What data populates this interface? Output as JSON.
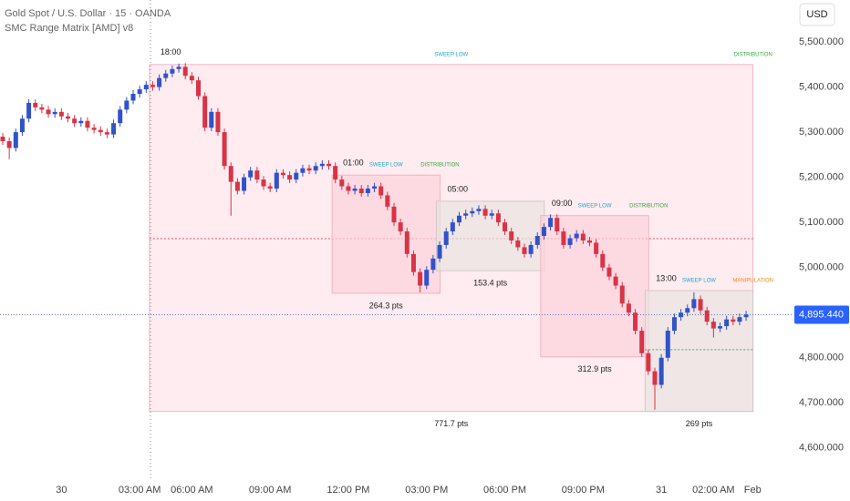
{
  "header": {
    "symbol": "Gold Spot / U.S. Dollar · 15 · OANDA",
    "indicator": "SMC Range Matrix [AMD] v8",
    "currency": "USD"
  },
  "chart_data": {
    "type": "candlestick",
    "categories": [
      null,
      null,
      null,
      null,
      null,
      null,
      null,
      null,
      null,
      "30",
      null,
      null,
      null,
      null,
      null,
      null,
      null,
      null,
      null,
      null,
      null,
      "03:00 AM",
      null,
      null,
      null,
      null,
      null,
      null,
      null,
      "06:00 AM",
      null,
      null,
      null,
      null,
      null,
      null,
      null,
      null,
      null,
      null,
      null,
      "09:00 AM",
      null,
      null,
      null,
      null,
      null,
      null,
      null,
      null,
      null,
      null,
      null,
      "12:00 PM",
      null,
      null,
      null,
      null,
      null,
      null,
      null,
      null,
      null,
      null,
      null,
      "03:00 PM",
      null,
      null,
      null,
      null,
      null,
      null,
      null,
      null,
      null,
      null,
      null,
      "06:00 PM",
      null,
      null,
      null,
      null,
      null,
      null,
      null,
      null,
      null,
      null,
      null,
      "09:00 PM",
      null,
      null,
      null,
      null,
      null,
      null,
      null,
      null,
      null,
      null,
      null,
      "31",
      null,
      null,
      null,
      null,
      null,
      null,
      null,
      "02:00 AM",
      null,
      null,
      null,
      null,
      null,
      "Feb"
    ],
    "open": [
      5290,
      5280,
      5265,
      5300,
      5330,
      5365,
      5355,
      5350,
      5340,
      5345,
      5335,
      5330,
      5320,
      5325,
      5310,
      5305,
      5300,
      5295,
      5320,
      5350,
      5370,
      5385,
      5395,
      5405,
      5400,
      5420,
      5430,
      5440,
      5445,
      5425,
      5415,
      5380,
      5310,
      5345,
      5300,
      5225,
      5190,
      5170,
      5200,
      5215,
      5195,
      5180,
      5175,
      5210,
      5205,
      5195,
      5210,
      5220,
      5215,
      5225,
      5230,
      5225,
      5195,
      5180,
      5170,
      5175,
      5165,
      5175,
      5180,
      5160,
      5135,
      5100,
      5080,
      5030,
      4990,
      4960,
      4995,
      5020,
      5050,
      5080,
      5100,
      5115,
      5120,
      5125,
      5130,
      5115,
      5120,
      5100,
      5080,
      5060,
      5045,
      5030,
      5050,
      5070,
      5090,
      5110,
      5080,
      5050,
      5065,
      5075,
      5060,
      5055,
      5030,
      5000,
      4980,
      4960,
      4920,
      4900,
      4860,
      4810,
      4770,
      4740,
      4800,
      4860,
      4890,
      4900,
      4910,
      4930,
      4905,
      4880,
      4865,
      4870,
      4885,
      4880,
      4890,
      null
    ],
    "high": [
      5298,
      5288,
      5308,
      5338,
      5373,
      5373,
      5363,
      5358,
      5353,
      5353,
      5343,
      5338,
      5333,
      5333,
      5318,
      5313,
      5308,
      5328,
      5358,
      5378,
      5393,
      5403,
      5413,
      5413,
      5428,
      5438,
      5448,
      5452,
      5453,
      5433,
      5423,
      5388,
      5353,
      5353,
      5308,
      5233,
      5198,
      5208,
      5223,
      5223,
      5203,
      5188,
      5218,
      5218,
      5213,
      5218,
      5228,
      5228,
      5233,
      5238,
      5238,
      5233,
      5203,
      5188,
      5183,
      5183,
      5183,
      5188,
      5188,
      5168,
      5143,
      5108,
      5088,
      5038,
      4998,
      5003,
      5028,
      5058,
      5088,
      5108,
      5123,
      5128,
      5133,
      5138,
      5138,
      5128,
      5128,
      5108,
      5088,
      5068,
      5053,
      5058,
      5078,
      5098,
      5118,
      5118,
      5088,
      5073,
      5083,
      5083,
      5068,
      5063,
      5038,
      5008,
      4988,
      4968,
      4928,
      4908,
      4868,
      4818,
      4778,
      4808,
      4868,
      4898,
      4908,
      4918,
      4945,
      4938,
      4913,
      4888,
      4878,
      4893,
      4893,
      4898,
      4904,
      null
    ],
    "low": [
      5272,
      5240,
      5257,
      5292,
      5322,
      5347,
      5342,
      5332,
      5332,
      5327,
      5322,
      5312,
      5312,
      5302,
      5297,
      5292,
      5287,
      5287,
      5312,
      5342,
      5362,
      5377,
      5387,
      5392,
      5392,
      5412,
      5422,
      5432,
      5417,
      5407,
      5372,
      5302,
      5302,
      5292,
      5217,
      5115,
      5162,
      5162,
      5192,
      5187,
      5172,
      5167,
      5167,
      5197,
      5187,
      5187,
      5202,
      5207,
      5207,
      5217,
      5217,
      5187,
      5172,
      5162,
      5162,
      5157,
      5157,
      5167,
      5152,
      5127,
      5092,
      5072,
      5022,
      4982,
      4945,
      4952,
      4987,
      5012,
      5042,
      5072,
      5092,
      5107,
      5112,
      5117,
      5107,
      5107,
      5092,
      5072,
      5052,
      5037,
      5022,
      5022,
      5042,
      5062,
      5082,
      5072,
      5042,
      5042,
      5057,
      5052,
      5047,
      5022,
      4992,
      4972,
      4952,
      4912,
      4892,
      4852,
      4802,
      4762,
      4685,
      4732,
      4792,
      4852,
      4882,
      4892,
      4902,
      4897,
      4872,
      4845,
      4857,
      4862,
      4872,
      4872,
      4882,
      null
    ],
    "close": [
      5280,
      5265,
      5300,
      5330,
      5365,
      5355,
      5350,
      5340,
      5345,
      5335,
      5330,
      5320,
      5325,
      5310,
      5305,
      5300,
      5295,
      5320,
      5350,
      5370,
      5385,
      5395,
      5405,
      5400,
      5420,
      5430,
      5440,
      5445,
      5425,
      5415,
      5380,
      5310,
      5345,
      5300,
      5225,
      5190,
      5170,
      5200,
      5215,
      5195,
      5180,
      5175,
      5210,
      5205,
      5195,
      5210,
      5220,
      5215,
      5225,
      5230,
      5225,
      5195,
      5180,
      5170,
      5175,
      5165,
      5175,
      5180,
      5160,
      5135,
      5100,
      5080,
      5030,
      4990,
      4960,
      4995,
      5020,
      5050,
      5080,
      5100,
      5115,
      5120,
      5125,
      5130,
      5115,
      5120,
      5100,
      5080,
      5060,
      5045,
      5030,
      5050,
      5070,
      5090,
      5110,
      5080,
      5050,
      5065,
      5075,
      5060,
      5055,
      5030,
      5000,
      4980,
      4960,
      4920,
      4900,
      4860,
      4810,
      4770,
      4740,
      4800,
      4860,
      4890,
      4900,
      4910,
      4930,
      4905,
      4880,
      4865,
      4870,
      4885,
      4880,
      4890,
      4896,
      null
    ],
    "up_color": "#3152c8",
    "down_color": "#d83446",
    "ylim": [
      4533,
      5593
    ],
    "yticks": [
      {
        "value": 5500,
        "label": "5,500.000"
      },
      {
        "value": 5400,
        "label": "5,400.000"
      },
      {
        "value": 5300,
        "label": "5,300.000"
      },
      {
        "value": 5200,
        "label": "5,200.000"
      },
      {
        "value": 5100,
        "label": "5,100.000"
      },
      {
        "value": 5000,
        "label": "5,000.000"
      },
      {
        "value": 4900,
        "label": "4,900.000"
      },
      {
        "value": 4800,
        "label": "4,800.000"
      },
      {
        "value": 4700,
        "label": "4,700.000"
      },
      {
        "value": 4600,
        "label": "4,600.000"
      }
    ],
    "last_price": {
      "value": 4895.44,
      "label": "4,895.440"
    },
    "zones": [
      {
        "label": "18:00",
        "start": 23,
        "end": 115,
        "top": 5450,
        "bottom": 4681,
        "fill": "#fde4ea",
        "stroke": "#f2a7b9",
        "range_label": "771.7 pts",
        "midline": 5064,
        "midline_color": "#e05060",
        "tags": [
          {
            "text": "SWEEP LOW",
            "color": "#20a6c0"
          },
          {
            "text": "DISTRIBUTION",
            "color": "#3aa845"
          }
        ]
      },
      {
        "label": "01:00",
        "start": 51,
        "end": 67,
        "top": 5205,
        "bottom": 4943,
        "fill": "#fcd3dc",
        "stroke": "#f2a7b9",
        "range_label": "264.3 pts",
        "tags": [
          {
            "text": "SWEEP LOW",
            "color": "#20a6c0"
          },
          {
            "text": "DISTRIBUTION",
            "color": "#3aa845"
          }
        ]
      },
      {
        "label": "05:00",
        "start": 67,
        "end": 83,
        "top": 5147,
        "bottom": 4993,
        "fill": "#e8e4e0",
        "stroke": "#c8c4c0",
        "range_label": "153.4 pts"
      },
      {
        "label": "09:00",
        "start": 83,
        "end": 99,
        "top": 5115,
        "bottom": 4802,
        "fill": "#fcd3dc",
        "stroke": "#f2a7b9",
        "range_label": "312.9 pts",
        "tags": [
          {
            "text": "SWEEP LOW",
            "color": "#20a6c0"
          },
          {
            "text": "DISTRIBUTION",
            "color": "#3aa845"
          }
        ]
      },
      {
        "label": "13:00",
        "start": 99,
        "end": 115,
        "top": 4949,
        "bottom": 4681,
        "fill": "#e8e4e0",
        "stroke": "#c8c4c0",
        "range_label": "269 pts",
        "midline": 4818,
        "midline_color": "#6a9a6a",
        "tags": [
          {
            "text": "SWEEP LOW",
            "color": "#20a6c0"
          },
          {
            "text": "MANIPULATION",
            "color": "#f08a1c"
          }
        ]
      }
    ]
  }
}
